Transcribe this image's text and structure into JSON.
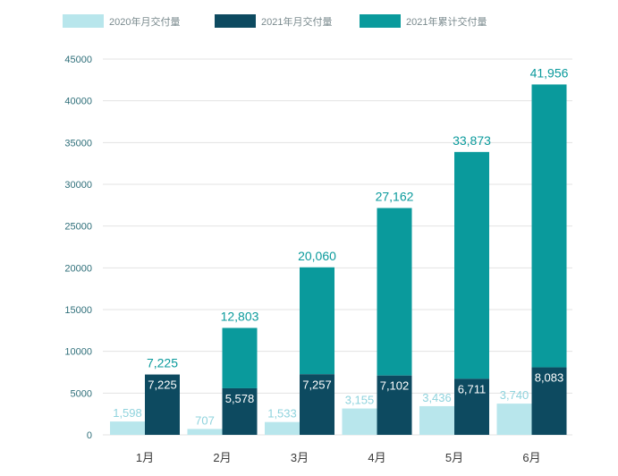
{
  "chart_data": {
    "type": "bar",
    "categories": [
      "1月",
      "2月",
      "3月",
      "4月",
      "5月",
      "6月"
    ],
    "ylim": [
      0,
      45000
    ],
    "yticks": [
      0,
      5000,
      10000,
      15000,
      20000,
      25000,
      30000,
      35000,
      40000,
      45000
    ],
    "grid": true,
    "legend_position": "top",
    "series": [
      {
        "name": "2020年月交付量",
        "color": "#b8e6ec",
        "values": [
          1598,
          707,
          1533,
          3155,
          3436,
          3740
        ],
        "labels": [
          "1,598",
          "707",
          "1,533",
          "3,155",
          "3,436",
          "3,740"
        ]
      },
      {
        "name": "2021年月交付量",
        "color": "#0d4a60",
        "values": [
          7225,
          5578,
          7257,
          7102,
          6711,
          8083
        ],
        "labels": [
          "7,225",
          "5,578",
          "7,257",
          "7,102",
          "6,711",
          "8,083"
        ]
      },
      {
        "name": "2021年累计交付量",
        "color": "#0a9a9c",
        "values": [
          7225,
          12803,
          20060,
          27162,
          33873,
          41956
        ],
        "labels": [
          "7,225",
          "12,803",
          "20,060",
          "27,162",
          "33,873",
          "41,956"
        ]
      }
    ]
  }
}
